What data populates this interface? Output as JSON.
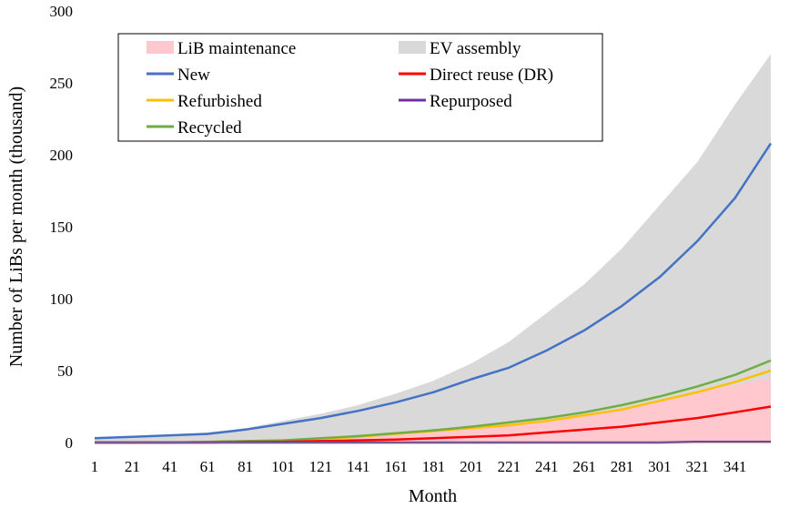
{
  "chart_data": {
    "type": "line",
    "xlabel": "Month",
    "ylabel": "Number of LiBs per month (thousand)",
    "xlim": [
      1,
      360
    ],
    "ylim": [
      0,
      300
    ],
    "x_ticks": [
      1,
      21,
      41,
      61,
      81,
      101,
      121,
      141,
      161,
      181,
      201,
      221,
      241,
      261,
      281,
      301,
      321,
      341
    ],
    "x_tick_labels": [
      "1",
      "21",
      "41",
      "61",
      "81",
      "101",
      "121",
      "141",
      "161",
      "181",
      "201",
      "221",
      "241",
      "261",
      "281",
      "301",
      "321",
      "341"
    ],
    "y_ticks": [
      0,
      50,
      100,
      150,
      200,
      250,
      300
    ],
    "y_tick_labels": [
      "0",
      "50",
      "100",
      "150",
      "200",
      "250",
      "300"
    ],
    "grid": false,
    "legend_position": "top-left",
    "series": [
      {
        "name": "EV assembly",
        "kind": "area",
        "color": "#d9d9d9",
        "x": [
          1,
          21,
          41,
          61,
          81,
          101,
          121,
          141,
          161,
          181,
          201,
          221,
          241,
          261,
          281,
          301,
          321,
          341,
          360
        ],
        "values": [
          3,
          4,
          5,
          7,
          10,
          15,
          20,
          26,
          34,
          43,
          55,
          70,
          90,
          110,
          135,
          165,
          195,
          235,
          270
        ]
      },
      {
        "name": "LiB maintenance",
        "kind": "area",
        "color": "#ffc7ce",
        "x": [
          1,
          21,
          41,
          61,
          81,
          101,
          121,
          141,
          161,
          181,
          201,
          221,
          241,
          261,
          281,
          301,
          321,
          341,
          360
        ],
        "values": [
          0,
          0,
          0,
          0.5,
          1,
          1.5,
          2.5,
          3.5,
          5,
          7,
          9,
          12,
          15,
          19,
          24,
          29,
          35,
          40,
          45
        ]
      },
      {
        "name": "New",
        "kind": "line",
        "color": "#4472c4",
        "x": [
          1,
          21,
          41,
          61,
          81,
          101,
          121,
          141,
          161,
          181,
          201,
          221,
          241,
          261,
          281,
          301,
          321,
          341,
          360
        ],
        "values": [
          3,
          4,
          5,
          6,
          9,
          13,
          17,
          22,
          28,
          35,
          44,
          52,
          64,
          78,
          95,
          115,
          140,
          170,
          208
        ]
      },
      {
        "name": "Direct reuse (DR)",
        "kind": "line",
        "color": "#ff0000",
        "x": [
          1,
          21,
          41,
          61,
          81,
          101,
          121,
          141,
          161,
          181,
          201,
          221,
          241,
          261,
          281,
          301,
          321,
          341,
          360
        ],
        "values": [
          0,
          0,
          0,
          0,
          0.3,
          0.5,
          1,
          1.5,
          2,
          3,
          4,
          5,
          7,
          9,
          11,
          14,
          17,
          21,
          25
        ]
      },
      {
        "name": "Refurbished",
        "kind": "line",
        "color": "#ffc000",
        "x": [
          1,
          21,
          41,
          61,
          81,
          101,
          121,
          141,
          161,
          181,
          201,
          221,
          241,
          261,
          281,
          301,
          321,
          341,
          360
        ],
        "values": [
          0,
          0,
          0,
          0.5,
          1,
          1.5,
          2.5,
          4,
          6,
          8,
          10,
          12,
          15,
          19,
          23,
          29,
          35,
          42,
          50
        ]
      },
      {
        "name": "Repurposed",
        "kind": "line",
        "color": "#7030a0",
        "x": [
          1,
          21,
          41,
          61,
          81,
          101,
          121,
          141,
          161,
          181,
          201,
          221,
          241,
          261,
          281,
          301,
          321,
          341,
          360
        ],
        "values": [
          0,
          0,
          0,
          0,
          0,
          0,
          0,
          0,
          0,
          0,
          0,
          0,
          0,
          0,
          0,
          0,
          0.5,
          0.5,
          0.5
        ]
      },
      {
        "name": "Recycled",
        "kind": "line",
        "color": "#70ad47",
        "x": [
          1,
          21,
          41,
          61,
          81,
          101,
          121,
          141,
          161,
          181,
          201,
          221,
          241,
          261,
          281,
          301,
          321,
          341,
          360
        ],
        "values": [
          0,
          0,
          0,
          0.5,
          1,
          1.5,
          3,
          4.5,
          6.5,
          8.5,
          11,
          14,
          17,
          21,
          26,
          32,
          39,
          47,
          57
        ]
      }
    ]
  }
}
